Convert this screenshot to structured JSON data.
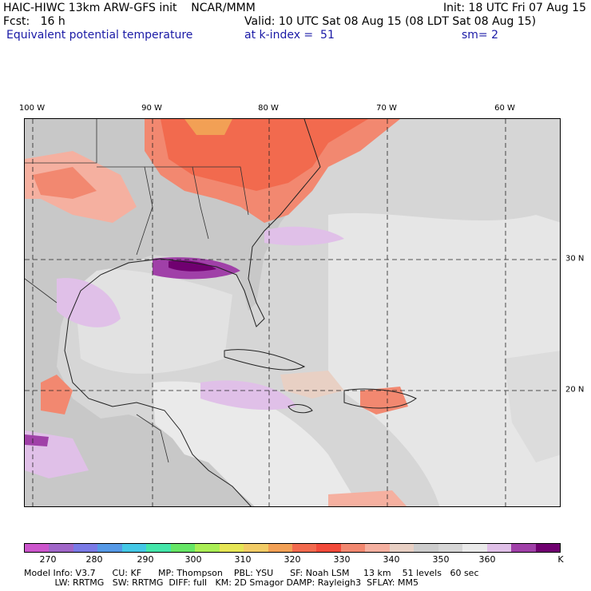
{
  "header": {
    "line1_left": "HAIC-HIWC 13km ARW-GFS init    NCAR/MMM",
    "line1_right": "Init: 18 UTC Fri 07 Aug 15",
    "line2_left": "Fcst:   16 h",
    "line2_right": "Valid: 10 UTC Sat 08 Aug 15 (08 LDT Sat 08 Aug 15)",
    "line3_field": "Equivalent potential temperature",
    "line3_level": "at k-index =  51",
    "line3_smooth": "sm= 2"
  },
  "longitude_labels": [
    "100 W",
    "90 W",
    "80 W",
    "70 W",
    "60 W"
  ],
  "latitude_labels": [
    "30 N",
    "20 N"
  ],
  "colorbar": {
    "colors": [
      "#cc55cc",
      "#a066c8",
      "#7a7ae6",
      "#5599e6",
      "#44c8e6",
      "#44e6aa",
      "#66e666",
      "#aaee55",
      "#e6e655",
      "#f2cc66",
      "#f2a055",
      "#f26a4e",
      "#f24a3a",
      "#f28870",
      "#f5b0a0",
      "#e8d0c4",
      "#cccccc",
      "#d6d6d6",
      "#eaeaea",
      "#e0c0e8",
      "#a040a8",
      "#700070"
    ],
    "tick_labels": [
      "270",
      "280",
      "290",
      "300",
      "310",
      "320",
      "330",
      "340",
      "350",
      "360",
      "K"
    ]
  },
  "model_info": {
    "line1": "Model Info: V3.7      CU: KF      MP: Thompson    PBL: YSU      SF: Noah LSM     13 km    51 levels   60 sec",
    "line2": "           LW: RRTMG   SW: RRTMG  DIFF: full   KM: 2D Smagor DAMP: Rayleigh3  SFLAY: MM5"
  }
}
